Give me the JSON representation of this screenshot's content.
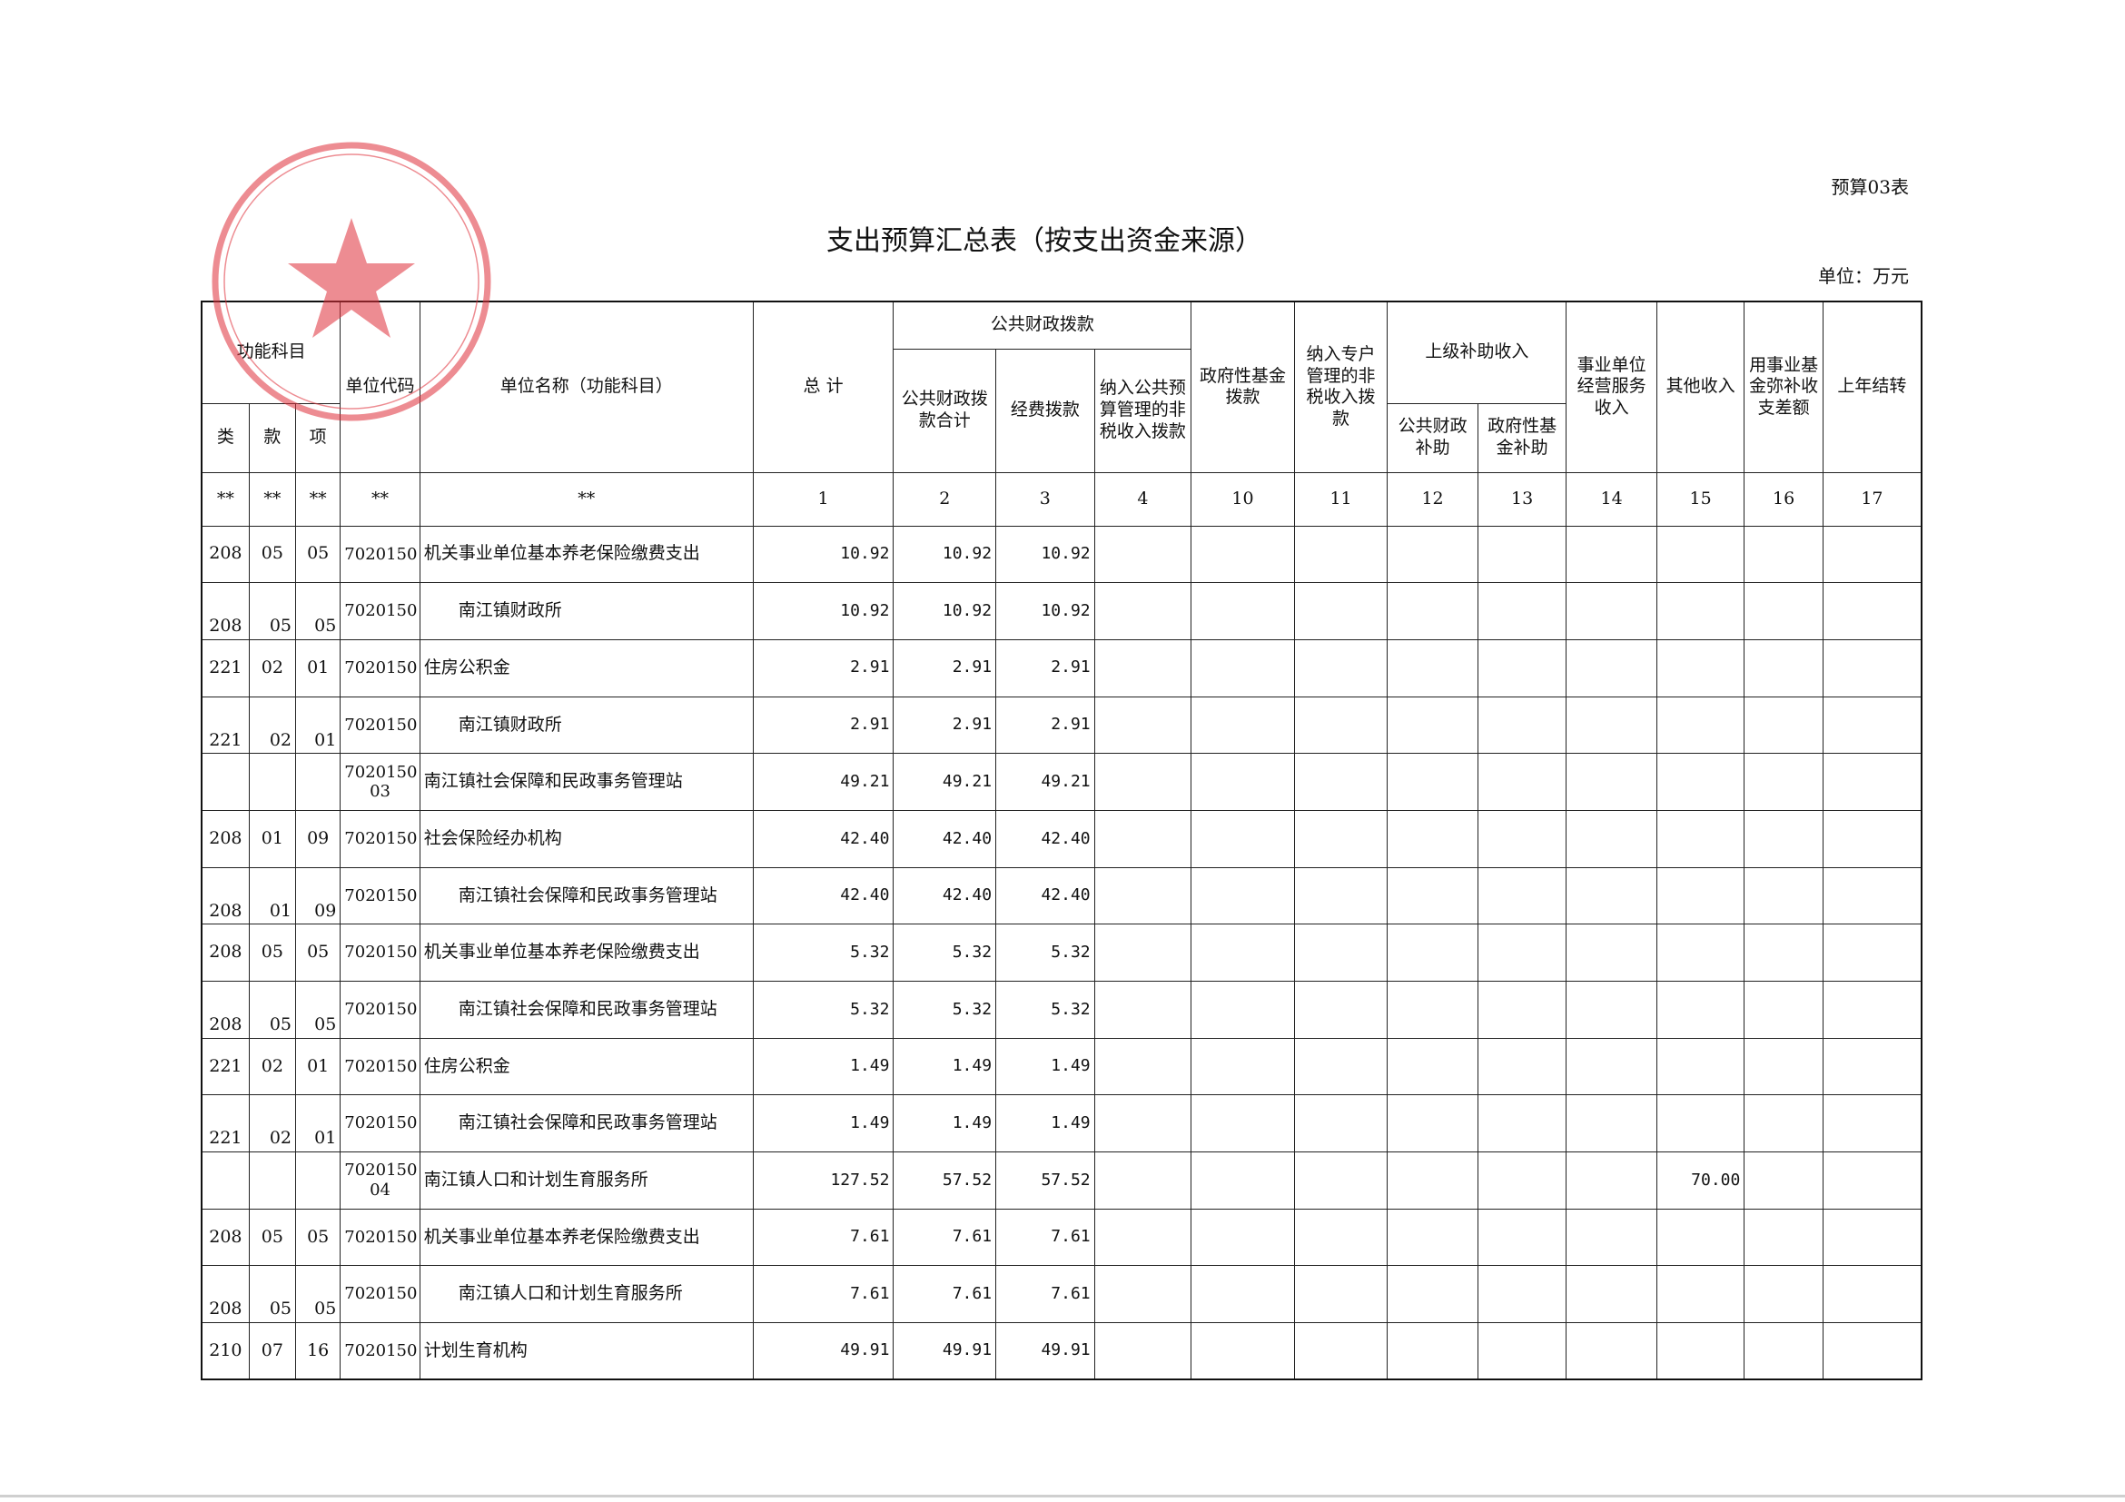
{
  "header": {
    "form_no": "预算03表",
    "title": "支出预算汇总表（按支出资金来源）",
    "unit": "单位：万元"
  },
  "table": {
    "head": {
      "func": "功能科目",
      "lei": "类",
      "kuan": "款",
      "xiang": "项",
      "code": "单位代码",
      "name": "单位名称（功能科目）",
      "total": "总 计",
      "public": "公共财政拨款",
      "public_sum": "公共财政拨款合计",
      "funds": "经费拨款",
      "nontax_budget": "纳入公共预算管理的非税收入拨款",
      "gov_fund": "政府性基金拨款",
      "special": "纳入专户管理的非税收入拨款",
      "upper": "上级补助收入",
      "upper_public": "公共财政补助",
      "upper_gov": "政府性基金补助",
      "biz": "事业单位经营服务收入",
      "other": "其他收入",
      "reserve": "用事业基金弥补收支差额",
      "carry": "上年结转"
    },
    "index_row": [
      "**",
      "**",
      "**",
      "**",
      "**",
      "1",
      "2",
      "3",
      "4",
      "10",
      "11",
      "12",
      "13",
      "14",
      "15",
      "16",
      "17"
    ],
    "rows": [
      {
        "lei": "208",
        "kuan": "05",
        "xiang": "05",
        "code": "7020150",
        "name": "机关事业单位基本养老保险缴费支出",
        "c1": "10.92",
        "c2": "10.92",
        "c3": "10.92"
      },
      {
        "lei": "208",
        "kuan": "05",
        "xiang": "05",
        "code": "7020150",
        "name": "南江镇财政所",
        "c1": "10.92",
        "c2": "10.92",
        "c3": "10.92"
      },
      {
        "lei": "221",
        "kuan": "02",
        "xiang": "01",
        "code": "7020150",
        "name": "住房公积金",
        "c1": "2.91",
        "c2": "2.91",
        "c3": "2.91"
      },
      {
        "lei": "221",
        "kuan": "02",
        "xiang": "01",
        "code": "7020150",
        "name": "南江镇财政所",
        "c1": "2.91",
        "c2": "2.91",
        "c3": "2.91"
      },
      {
        "code": "7020150\n03",
        "name": "南江镇社会保障和民政事务管理站",
        "c1": "49.21",
        "c2": "49.21",
        "c3": "49.21"
      },
      {
        "lei": "208",
        "kuan": "01",
        "xiang": "09",
        "code": "7020150",
        "name": "社会保险经办机构",
        "c1": "42.40",
        "c2": "42.40",
        "c3": "42.40"
      },
      {
        "lei": "208",
        "kuan": "01",
        "xiang": "09",
        "code": "7020150",
        "name": "南江镇社会保障和民政事务管理站",
        "c1": "42.40",
        "c2": "42.40",
        "c3": "42.40"
      },
      {
        "lei": "208",
        "kuan": "05",
        "xiang": "05",
        "code": "7020150",
        "name": "机关事业单位基本养老保险缴费支出",
        "c1": "5.32",
        "c2": "5.32",
        "c3": "5.32"
      },
      {
        "lei": "208",
        "kuan": "05",
        "xiang": "05",
        "code": "7020150",
        "name": "南江镇社会保障和民政事务管理站",
        "c1": "5.32",
        "c2": "5.32",
        "c3": "5.32"
      },
      {
        "lei": "221",
        "kuan": "02",
        "xiang": "01",
        "code": "7020150",
        "name": "住房公积金",
        "c1": "1.49",
        "c2": "1.49",
        "c3": "1.49"
      },
      {
        "lei": "221",
        "kuan": "02",
        "xiang": "01",
        "code": "7020150",
        "name": "南江镇社会保障和民政事务管理站",
        "c1": "1.49",
        "c2": "1.49",
        "c3": "1.49"
      },
      {
        "code": "7020150\n04",
        "name": "南江镇人口和计划生育服务所",
        "c1": "127.52",
        "c2": "57.52",
        "c3": "57.52",
        "c15": "70.00"
      },
      {
        "lei": "208",
        "kuan": "05",
        "xiang": "05",
        "code": "7020150",
        "name": "机关事业单位基本养老保险缴费支出",
        "c1": "7.61",
        "c2": "7.61",
        "c3": "7.61"
      },
      {
        "lei": "208",
        "kuan": "05",
        "xiang": "05",
        "code": "7020150",
        "name": "南江镇人口和计划生育服务所",
        "c1": "7.61",
        "c2": "7.61",
        "c3": "7.61"
      },
      {
        "lei": "210",
        "kuan": "07",
        "xiang": "16",
        "code": "7020150",
        "name": "计划生育机构",
        "c1": "49.91",
        "c2": "49.91",
        "c3": "49.91"
      }
    ]
  }
}
